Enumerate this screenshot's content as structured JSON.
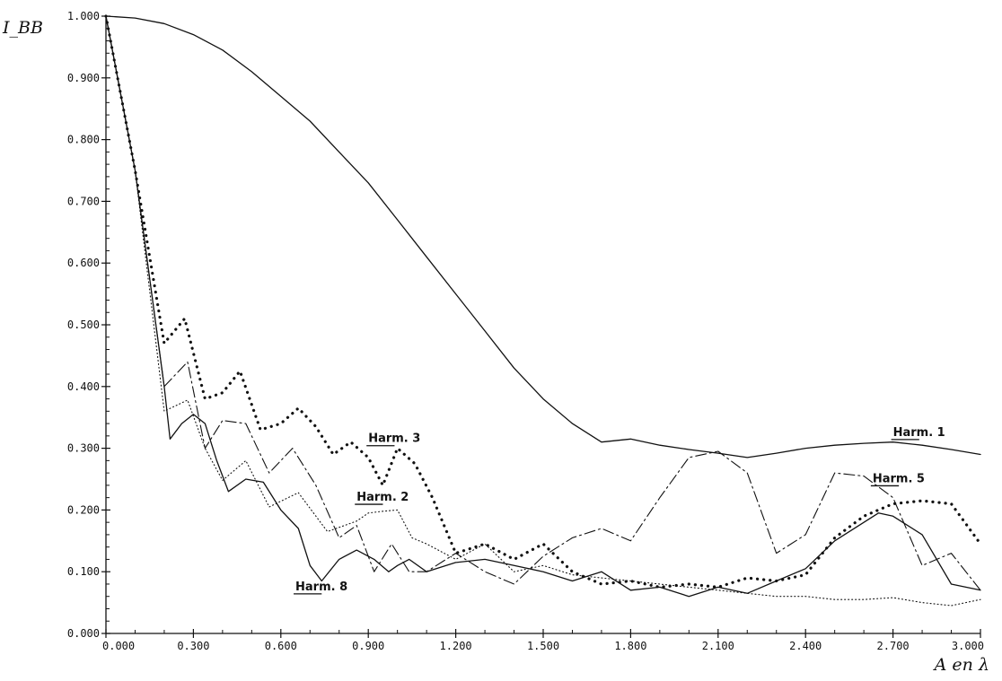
{
  "chart_data": {
    "type": "line",
    "title": "",
    "ylabel": "I_BB",
    "xlabel": "A en λ",
    "xlim": [
      0,
      3.0
    ],
    "ylim": [
      0,
      1.0
    ],
    "xticks": [
      "0.000",
      "0.300",
      "0.600",
      "0.900",
      "1.200",
      "1.500",
      "1.800",
      "2.100",
      "2.400",
      "2.700",
      "3.000"
    ],
    "yticks": [
      "0.000",
      "0.100",
      "0.200",
      "0.300",
      "0.400",
      "0.500",
      "0.600",
      "0.700",
      "0.800",
      "0.900",
      "1.000"
    ],
    "grid": false,
    "legend": "none",
    "series": [
      {
        "name": "Harm. 1",
        "style": "solid",
        "x": [
          0,
          0.1,
          0.2,
          0.3,
          0.4,
          0.5,
          0.6,
          0.7,
          0.8,
          0.9,
          1.0,
          1.1,
          1.2,
          1.3,
          1.4,
          1.5,
          1.6,
          1.7,
          1.8,
          1.9,
          2.0,
          2.1,
          2.2,
          2.3,
          2.4,
          2.5,
          2.6,
          2.7,
          2.8,
          2.9,
          3.0
        ],
        "y": [
          1.0,
          0.997,
          0.988,
          0.97,
          0.945,
          0.91,
          0.87,
          0.83,
          0.78,
          0.73,
          0.67,
          0.61,
          0.55,
          0.49,
          0.43,
          0.38,
          0.34,
          0.31,
          0.315,
          0.305,
          0.298,
          0.292,
          0.285,
          0.292,
          0.3,
          0.305,
          0.308,
          0.31,
          0.305,
          0.298,
          0.29
        ]
      },
      {
        "name": "Harm. 2",
        "style": "fine-dotted",
        "x": [
          0,
          0.1,
          0.2,
          0.28,
          0.34,
          0.4,
          0.48,
          0.56,
          0.66,
          0.76,
          0.86,
          0.9,
          0.95,
          1.0,
          1.05,
          1.1,
          1.2,
          1.3,
          1.4,
          1.5,
          1.6,
          1.7,
          1.8,
          1.9,
          2.0,
          2.1,
          2.2,
          2.3,
          2.4,
          2.5,
          2.6,
          2.7,
          2.8,
          2.9,
          3.0
        ],
        "y": [
          1.0,
          0.75,
          0.36,
          0.378,
          0.3,
          0.248,
          0.28,
          0.205,
          0.228,
          0.165,
          0.182,
          0.195,
          0.198,
          0.2,
          0.155,
          0.145,
          0.12,
          0.145,
          0.1,
          0.11,
          0.095,
          0.09,
          0.085,
          0.08,
          0.075,
          0.07,
          0.065,
          0.06,
          0.06,
          0.055,
          0.055,
          0.058,
          0.05,
          0.045,
          0.055
        ]
      },
      {
        "name": "Harm. 3",
        "style": "heavy-dotted",
        "x": [
          0,
          0.1,
          0.2,
          0.27,
          0.34,
          0.4,
          0.46,
          0.53,
          0.6,
          0.66,
          0.72,
          0.78,
          0.84,
          0.9,
          0.95,
          1.0,
          1.06,
          1.12,
          1.2,
          1.3,
          1.4,
          1.5,
          1.6,
          1.7,
          1.8,
          1.9,
          2.0,
          2.1,
          2.2,
          2.3,
          2.4,
          2.5,
          2.6,
          2.7,
          2.8,
          2.9,
          3.0
        ],
        "y": [
          1.0,
          0.75,
          0.47,
          0.51,
          0.38,
          0.39,
          0.425,
          0.33,
          0.34,
          0.365,
          0.335,
          0.29,
          0.31,
          0.285,
          0.24,
          0.3,
          0.275,
          0.22,
          0.13,
          0.145,
          0.12,
          0.145,
          0.1,
          0.08,
          0.085,
          0.075,
          0.08,
          0.075,
          0.09,
          0.085,
          0.095,
          0.155,
          0.19,
          0.21,
          0.215,
          0.21,
          0.145
        ]
      },
      {
        "name": "",
        "style": "dash-dot",
        "x": [
          0,
          0.1,
          0.2,
          0.28,
          0.34,
          0.4,
          0.48,
          0.56,
          0.64,
          0.72,
          0.8,
          0.86,
          0.92,
          0.98,
          1.04,
          1.1,
          1.2,
          1.3,
          1.4,
          1.5,
          1.6,
          1.7,
          1.8,
          1.9,
          2.0,
          2.1,
          2.2,
          2.3,
          2.4,
          2.5,
          2.6,
          2.7,
          2.8,
          2.9,
          3.0
        ],
        "y": [
          1.0,
          0.75,
          0.4,
          0.44,
          0.3,
          0.345,
          0.34,
          0.26,
          0.3,
          0.24,
          0.155,
          0.175,
          0.1,
          0.145,
          0.1,
          0.1,
          0.13,
          0.1,
          0.08,
          0.125,
          0.155,
          0.17,
          0.15,
          0.22,
          0.285,
          0.295,
          0.26,
          0.13,
          0.16,
          0.26,
          0.255,
          0.22,
          0.11,
          0.13,
          0.07
        ]
      },
      {
        "name": "Harm. 8",
        "style": "solid",
        "x": [
          0,
          0.1,
          0.2,
          0.22,
          0.26,
          0.3,
          0.34,
          0.38,
          0.42,
          0.48,
          0.54,
          0.6,
          0.66,
          0.7,
          0.74,
          0.8,
          0.86,
          0.92,
          0.97,
          1.0,
          1.04,
          1.1,
          1.2,
          1.3,
          1.4,
          1.5,
          1.6,
          1.7,
          1.8,
          1.9,
          2.0,
          2.1,
          2.2,
          2.3,
          2.4,
          2.5,
          2.6,
          2.65,
          2.7,
          2.8,
          2.9,
          3.0
        ],
        "y": [
          1.0,
          0.75,
          0.4,
          0.315,
          0.34,
          0.355,
          0.34,
          0.28,
          0.23,
          0.25,
          0.245,
          0.2,
          0.17,
          0.11,
          0.085,
          0.12,
          0.135,
          0.12,
          0.1,
          0.11,
          0.12,
          0.1,
          0.115,
          0.12,
          0.11,
          0.1,
          0.085,
          0.1,
          0.07,
          0.075,
          0.06,
          0.075,
          0.065,
          0.085,
          0.105,
          0.15,
          0.18,
          0.195,
          0.19,
          0.16,
          0.08,
          0.07
        ]
      }
    ],
    "annotations": [
      {
        "text": "Harm. 1",
        "x": 2.7,
        "y": 0.32
      },
      {
        "text": "Harm. 3",
        "x": 0.9,
        "y": 0.31
      },
      {
        "text": "Harm. 2",
        "x": 0.86,
        "y": 0.215
      },
      {
        "text": "Harm. 5",
        "x": 2.63,
        "y": 0.245
      },
      {
        "text": "Harm. 8",
        "x": 0.65,
        "y": 0.07
      }
    ]
  }
}
